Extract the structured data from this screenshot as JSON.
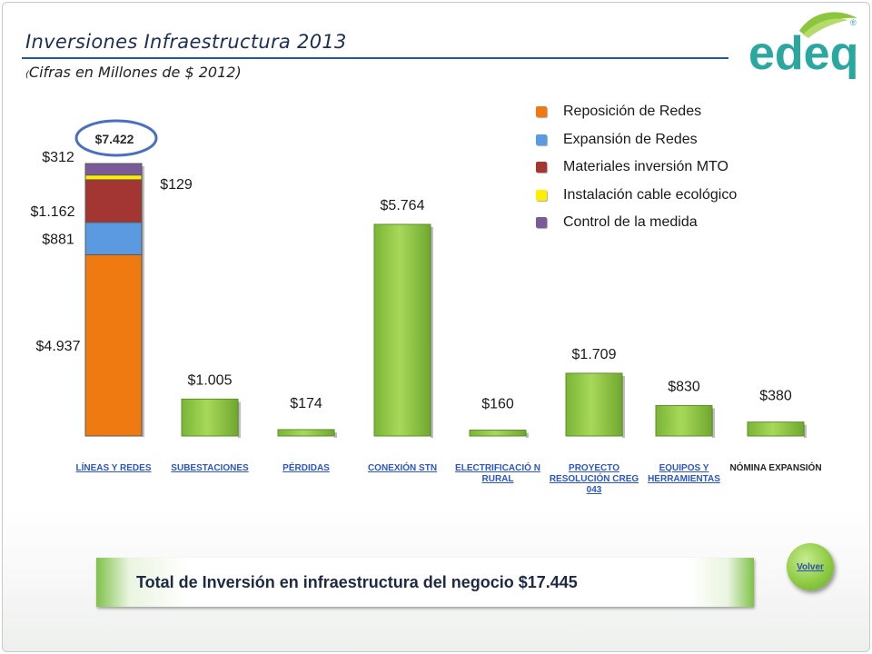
{
  "header": {
    "title": "Inversiones Infraestructura 2013",
    "subtitle_paren": "(",
    "subtitle": "Cifras en Millones de $ 2012)"
  },
  "logo": {
    "text": "edeq",
    "registered": "®",
    "icon": "edeq-leaf-logo",
    "color": "#2aa8a0",
    "leaf_color": "#8cc63f"
  },
  "colors": {
    "reposicion": "#f07a12",
    "expansion": "#5b9ae0",
    "materiales": "#a33533",
    "cable": "#ffee00",
    "control": "#7a5a98",
    "green_bar": "#8cc63f",
    "highlight_circle": "#4a6fc1"
  },
  "chart_data": {
    "type": "bar",
    "stacked_first_category": true,
    "categories": [
      "LÍNEAS Y REDES",
      "SUBESTACIONES",
      "PÉRDIDAS",
      "CONEXIÓN STN",
      "ELECTRIFICACIÓ N RURAL",
      "PROYECTO RESOLUCIÓN CREG 043",
      "EQUIPOS Y HERRAMIENTAS",
      "NÓMINA EXPANSIÓN"
    ],
    "category_links": [
      true,
      true,
      true,
      true,
      true,
      true,
      true,
      false
    ],
    "stack": {
      "category": "LÍNEAS Y REDES",
      "total": 7422,
      "total_label": "$7.422",
      "segments": [
        {
          "name": "Reposición de Redes",
          "value": 4937,
          "label": "$4.937"
        },
        {
          "name": "Expansión de Redes",
          "value": 881,
          "label": "$881"
        },
        {
          "name": "Materiales inversión MTO",
          "value": 1162,
          "label": "$1.162"
        },
        {
          "name": "Instalación cable ecológico",
          "value": 129,
          "label": "$129"
        },
        {
          "name": "Control de la medida",
          "value": 312,
          "label": "$312"
        }
      ]
    },
    "values": [
      7422,
      1005,
      174,
      5764,
      160,
      1709,
      830,
      380
    ],
    "value_labels": [
      "$7.422",
      "$1.005",
      "$174",
      "$5.764",
      "$160",
      "$1.709",
      "$830",
      "$380"
    ],
    "ylim": [
      0,
      7422
    ],
    "grid": false,
    "legend_position": "top-right",
    "legend": [
      "Reposición de Redes",
      "Expansión de Redes",
      "Materiales inversión MTO",
      "Instalación cable ecológico",
      "Control de la medida"
    ]
  },
  "footer": {
    "total_text": "Total de Inversión en infraestructura del negocio $17.445",
    "back_button": "Volver"
  }
}
